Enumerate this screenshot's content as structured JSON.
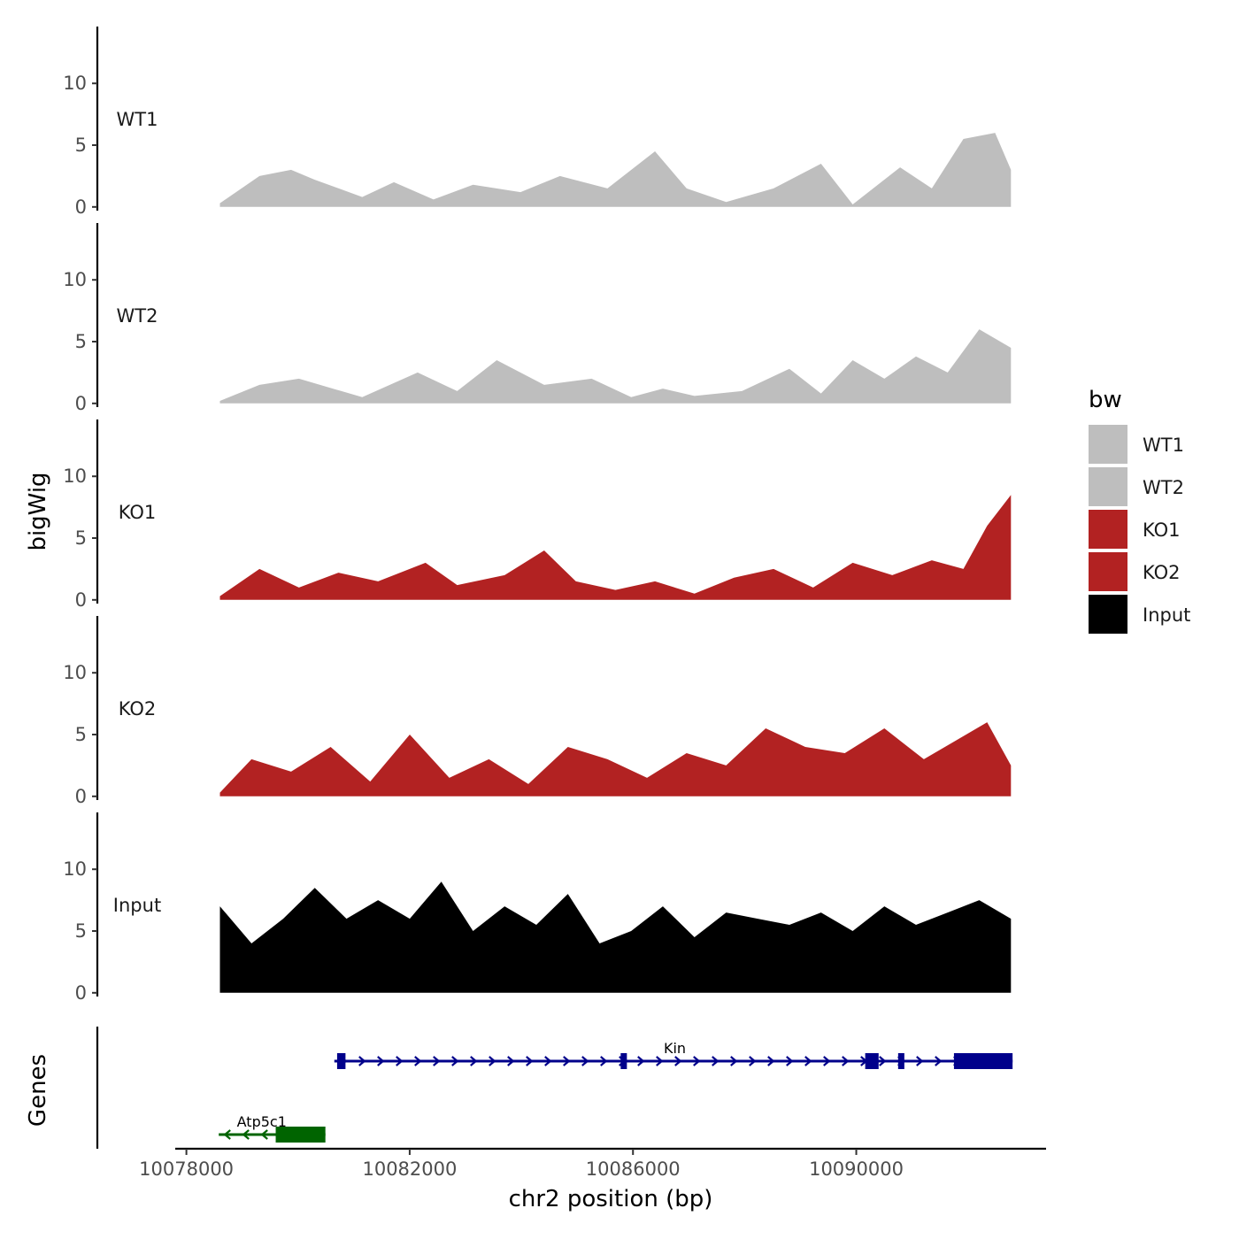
{
  "chart_data": {
    "type": "area",
    "title": "",
    "x_axis": {
      "title": "chr2 position (bp)",
      "range": [
        10077800,
        10093400
      ],
      "ticks": [
        10078000,
        10082000,
        10086000,
        10090000
      ],
      "tick_labels": [
        "10078000",
        "10082000",
        "10086000",
        "10090000"
      ]
    },
    "y_axis": {
      "title": "bigWig",
      "range": [
        -0.3,
        14.6
      ],
      "ticks": [
        0,
        5,
        10
      ],
      "tick_labels": [
        "0",
        "5",
        "10"
      ]
    },
    "data_range": [
      10078600,
      10092770
    ],
    "tracks": [
      {
        "name": "WT1",
        "color": "#bebebe",
        "points": [
          [
            0,
            0.3
          ],
          [
            0.05,
            2.5
          ],
          [
            0.09,
            3.0
          ],
          [
            0.12,
            2.2
          ],
          [
            0.18,
            0.8
          ],
          [
            0.22,
            2.0
          ],
          [
            0.27,
            0.6
          ],
          [
            0.32,
            1.8
          ],
          [
            0.38,
            1.2
          ],
          [
            0.43,
            2.5
          ],
          [
            0.49,
            1.5
          ],
          [
            0.55,
            4.5
          ],
          [
            0.59,
            1.5
          ],
          [
            0.64,
            0.4
          ],
          [
            0.7,
            1.5
          ],
          [
            0.76,
            3.5
          ],
          [
            0.8,
            0.2
          ],
          [
            0.86,
            3.2
          ],
          [
            0.9,
            1.5
          ],
          [
            0.94,
            5.5
          ],
          [
            0.98,
            6.0
          ],
          [
            1.0,
            3.0
          ]
        ]
      },
      {
        "name": "WT2",
        "color": "#bebebe",
        "points": [
          [
            0,
            0.2
          ],
          [
            0.05,
            1.5
          ],
          [
            0.1,
            2.0
          ],
          [
            0.18,
            0.5
          ],
          [
            0.25,
            2.5
          ],
          [
            0.3,
            1.0
          ],
          [
            0.35,
            3.5
          ],
          [
            0.41,
            1.5
          ],
          [
            0.47,
            2.0
          ],
          [
            0.52,
            0.5
          ],
          [
            0.56,
            1.2
          ],
          [
            0.6,
            0.6
          ],
          [
            0.66,
            1.0
          ],
          [
            0.72,
            2.8
          ],
          [
            0.76,
            0.8
          ],
          [
            0.8,
            3.5
          ],
          [
            0.84,
            2.0
          ],
          [
            0.88,
            3.8
          ],
          [
            0.92,
            2.5
          ],
          [
            0.96,
            6.0
          ],
          [
            1.0,
            4.5
          ]
        ]
      },
      {
        "name": "KO1",
        "color": "#b22222",
        "points": [
          [
            0,
            0.3
          ],
          [
            0.05,
            2.5
          ],
          [
            0.1,
            1.0
          ],
          [
            0.15,
            2.2
          ],
          [
            0.2,
            1.5
          ],
          [
            0.26,
            3.0
          ],
          [
            0.3,
            1.2
          ],
          [
            0.36,
            2.0
          ],
          [
            0.41,
            4.0
          ],
          [
            0.45,
            1.5
          ],
          [
            0.5,
            0.8
          ],
          [
            0.55,
            1.5
          ],
          [
            0.6,
            0.5
          ],
          [
            0.65,
            1.8
          ],
          [
            0.7,
            2.5
          ],
          [
            0.75,
            1.0
          ],
          [
            0.8,
            3.0
          ],
          [
            0.85,
            2.0
          ],
          [
            0.9,
            3.2
          ],
          [
            0.94,
            2.5
          ],
          [
            0.97,
            6.0
          ],
          [
            1.0,
            8.5
          ]
        ]
      },
      {
        "name": "KO2",
        "color": "#b22222",
        "points": [
          [
            0,
            0.3
          ],
          [
            0.04,
            3.0
          ],
          [
            0.09,
            2.0
          ],
          [
            0.14,
            4.0
          ],
          [
            0.19,
            1.2
          ],
          [
            0.24,
            5.0
          ],
          [
            0.29,
            1.5
          ],
          [
            0.34,
            3.0
          ],
          [
            0.39,
            1.0
          ],
          [
            0.44,
            4.0
          ],
          [
            0.49,
            3.0
          ],
          [
            0.54,
            1.5
          ],
          [
            0.59,
            3.5
          ],
          [
            0.64,
            2.5
          ],
          [
            0.69,
            5.5
          ],
          [
            0.74,
            4.0
          ],
          [
            0.79,
            3.5
          ],
          [
            0.84,
            5.5
          ],
          [
            0.89,
            3.0
          ],
          [
            0.93,
            4.5
          ],
          [
            0.97,
            6.0
          ],
          [
            1.0,
            2.5
          ]
        ]
      },
      {
        "name": "Input",
        "color": "#000000",
        "points": [
          [
            0,
            7.0
          ],
          [
            0.04,
            4.0
          ],
          [
            0.08,
            6.0
          ],
          [
            0.12,
            8.5
          ],
          [
            0.16,
            6.0
          ],
          [
            0.2,
            7.5
          ],
          [
            0.24,
            6.0
          ],
          [
            0.28,
            9.0
          ],
          [
            0.32,
            5.0
          ],
          [
            0.36,
            7.0
          ],
          [
            0.4,
            5.5
          ],
          [
            0.44,
            8.0
          ],
          [
            0.48,
            4.0
          ],
          [
            0.52,
            5.0
          ],
          [
            0.56,
            7.0
          ],
          [
            0.6,
            4.5
          ],
          [
            0.64,
            6.5
          ],
          [
            0.68,
            6.0
          ],
          [
            0.72,
            5.5
          ],
          [
            0.76,
            6.5
          ],
          [
            0.8,
            5.0
          ],
          [
            0.84,
            7.0
          ],
          [
            0.88,
            5.5
          ],
          [
            0.92,
            6.5
          ],
          [
            0.96,
            7.5
          ],
          [
            1.0,
            6.0
          ]
        ]
      }
    ],
    "legend": {
      "title": "bw",
      "position": "right",
      "entries": [
        {
          "label": "WT1",
          "color": "#bebebe"
        },
        {
          "label": "WT2",
          "color": "#bebebe"
        },
        {
          "label": "KO1",
          "color": "#b22222"
        },
        {
          "label": "KO2",
          "color": "#b22222"
        },
        {
          "label": "Input",
          "color": "#000000"
        }
      ]
    },
    "genes_track": {
      "title": "Genes",
      "genes": [
        {
          "name": "Kin",
          "strand": "+",
          "start": 10080650,
          "end": 10092800,
          "color": "#00008b",
          "exons": [
            [
              10080700,
              10080850
            ],
            [
              10085780,
              10085880
            ],
            [
              10090160,
              10090400
            ],
            [
              10090750,
              10090850
            ],
            [
              10091750,
              10092800
            ]
          ],
          "thick": [
            [
              10091750,
              10092800
            ]
          ]
        },
        {
          "name": "Atp5c1",
          "strand": "-",
          "start": 10078580,
          "end": 10080490,
          "color": "#006400",
          "exons": [
            [
              10079600,
              10080490
            ]
          ],
          "thick": [
            [
              10079600,
              10080490
            ]
          ]
        }
      ]
    }
  }
}
